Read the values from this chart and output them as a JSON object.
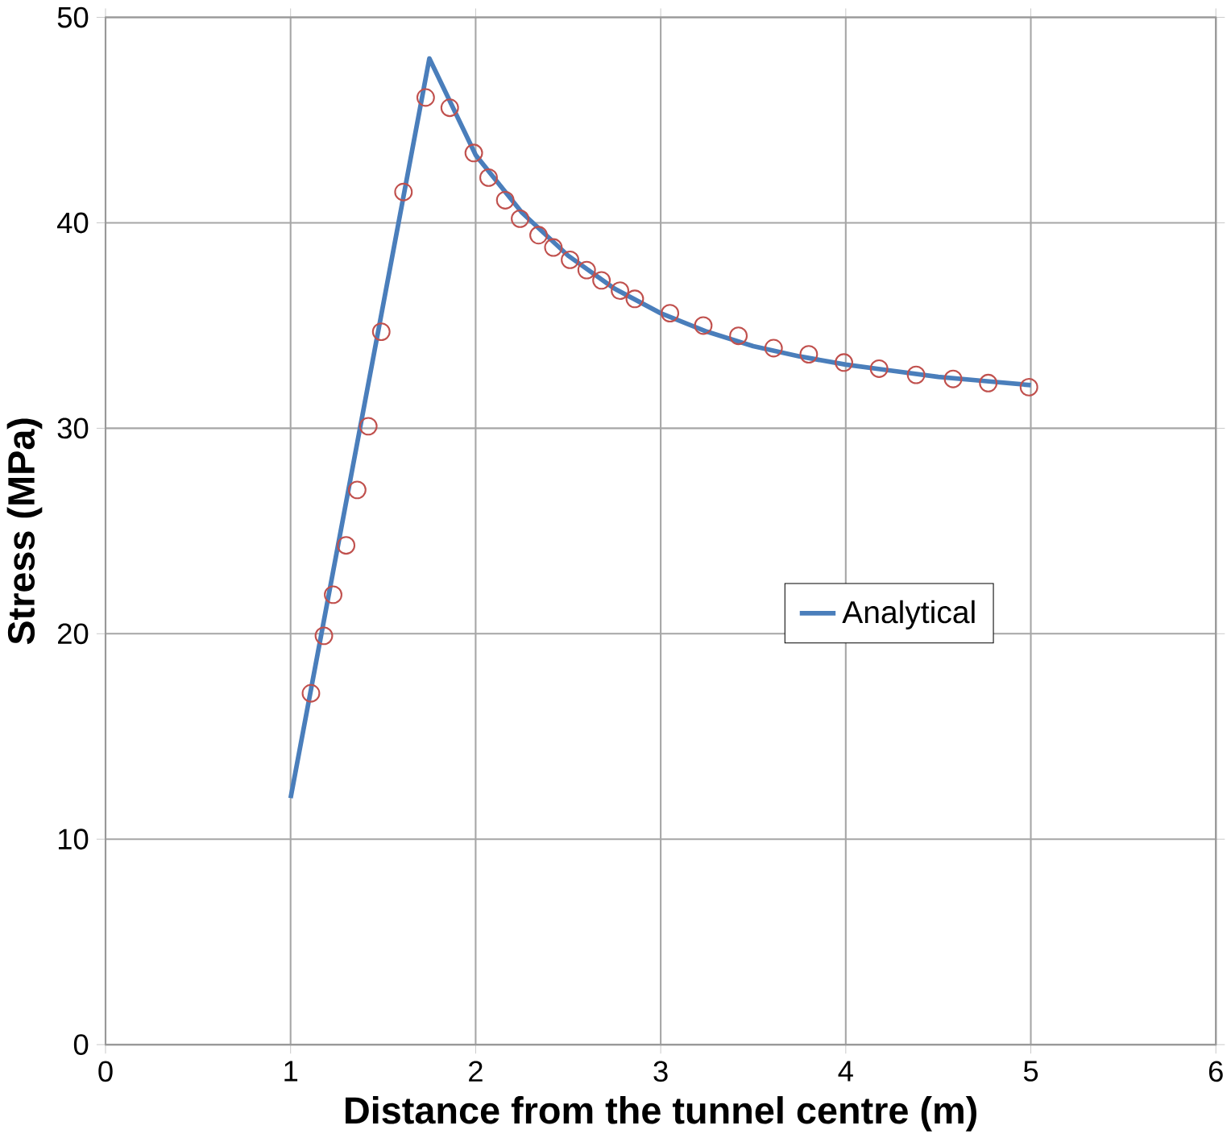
{
  "chart_data": {
    "type": "line",
    "xlabel": "Distance from the tunnel centre (m)",
    "ylabel": "Stress (MPa)",
    "xlim": [
      0,
      6
    ],
    "ylim": [
      0,
      50
    ],
    "xticks": [
      0,
      1,
      2,
      3,
      4,
      5,
      6
    ],
    "yticks": [
      0,
      10,
      20,
      30,
      40,
      50
    ],
    "grid": true,
    "legend": "right",
    "series": [
      {
        "name": "Analytical",
        "color": "#4a7ebb",
        "marker": "none",
        "line_style": "solid",
        "x": [
          1,
          1.75,
          2,
          2.25,
          2.5,
          2.75,
          3,
          3.25,
          3.5,
          3.75,
          4,
          4.25,
          4.5,
          4.75,
          5
        ],
        "values": [
          12,
          48,
          43.3,
          40.5,
          38.4,
          36.8,
          35.6,
          34.7,
          34.0,
          33.5,
          33.1,
          32.8,
          32.5,
          32.3,
          32.1
        ]
      },
      {
        "type": "scatter",
        "color": "#c0504d",
        "marker": "circle",
        "x": [
          1.11,
          1.18,
          1.23,
          1.3,
          1.36,
          1.42,
          1.49,
          1.61,
          1.73,
          1.86,
          1.99,
          2.07,
          2.16,
          2.24,
          2.34,
          2.42,
          2.51,
          2.6,
          2.68,
          2.78,
          2.86,
          3.05,
          3.23,
          3.42,
          3.61,
          3.8,
          3.99,
          4.18,
          4.38,
          4.58,
          4.77,
          4.99
        ],
        "values": [
          17.1,
          19.9,
          21.9,
          24.3,
          27.0,
          30.1,
          34.7,
          41.5,
          46.1,
          45.6,
          43.4,
          42.2,
          41.1,
          40.2,
          39.4,
          38.8,
          38.2,
          37.7,
          37.2,
          36.7,
          36.3,
          35.6,
          35.0,
          34.5,
          33.9,
          33.6,
          33.2,
          32.9,
          32.6,
          32.4,
          32.2,
          32.0
        ]
      }
    ]
  }
}
